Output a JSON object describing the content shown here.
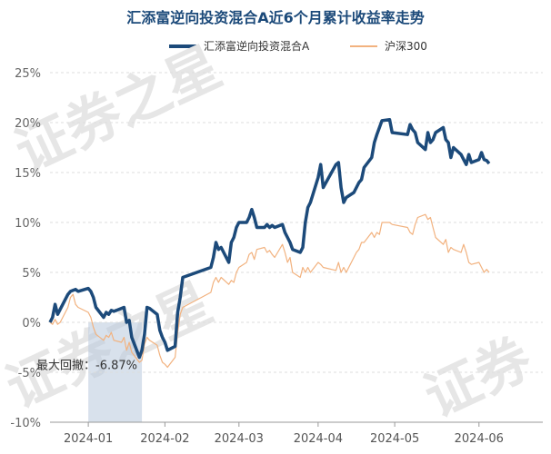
{
  "title": "汇添富逆向投资混合A近6个月累计收益率走势",
  "colors": {
    "fund": "#1c4a7a",
    "index": "#f2b27f",
    "drawdown": "#b8c9dc",
    "title": "#1c4a7a"
  },
  "chart_data": {
    "type": "line",
    "title": "汇添富逆向投资混合A近6个月累计收益率走势",
    "legend_position": "top-center",
    "grid": "horizontal",
    "ylim": [
      -10,
      25
    ],
    "y_ticks": [
      -10,
      -5,
      0,
      5,
      10,
      15,
      20,
      25
    ],
    "y_tick_labels": [
      "-10%",
      "-5%",
      "0%",
      "5%",
      "10%",
      "15%",
      "20%",
      "25%"
    ],
    "x_tick_labels": [
      "2024-01",
      "2024-02",
      "2024-03",
      "2024-04",
      "2024-05",
      "2024-06"
    ],
    "x_tick_dates": [
      "2024-01-02",
      "2024-02-01",
      "2024-03-01",
      "2024-04-01",
      "2024-05-01",
      "2024-06-03"
    ],
    "x_range": [
      "2023-12-18",
      "2024-06-28"
    ],
    "annotation": {
      "text": "最大回撤：-6.87%",
      "start": "2024-01-02",
      "end": "2024-01-23"
    },
    "series": [
      {
        "name": "汇添富逆向投资混合A",
        "points": [
          [
            "2023-12-18",
            0.0
          ],
          [
            "2023-12-19",
            0.5
          ],
          [
            "2023-12-20",
            1.8
          ],
          [
            "2023-12-21",
            0.8
          ],
          [
            "2023-12-22",
            1.3
          ],
          [
            "2023-12-25",
            2.8
          ],
          [
            "2023-12-26",
            3.1
          ],
          [
            "2023-12-27",
            3.2
          ],
          [
            "2023-12-28",
            3.3
          ],
          [
            "2023-12-29",
            3.1
          ],
          [
            "2024-01-02",
            3.4
          ],
          [
            "2024-01-03",
            3.1
          ],
          [
            "2024-01-04",
            2.5
          ],
          [
            "2024-01-05",
            1.5
          ],
          [
            "2024-01-08",
            0.5
          ],
          [
            "2024-01-09",
            1.0
          ],
          [
            "2024-01-10",
            0.8
          ],
          [
            "2024-01-11",
            1.2
          ],
          [
            "2024-01-12",
            1.1
          ],
          [
            "2024-01-15",
            1.4
          ],
          [
            "2024-01-16",
            1.5
          ],
          [
            "2024-01-17",
            0.0
          ],
          [
            "2024-01-18",
            0.2
          ],
          [
            "2024-01-19",
            -1.5
          ],
          [
            "2024-01-22",
            -3.5
          ],
          [
            "2024-01-23",
            -2.8
          ],
          [
            "2024-01-24",
            -1.2
          ],
          [
            "2024-01-25",
            1.5
          ],
          [
            "2024-01-26",
            1.4
          ],
          [
            "2024-01-29",
            0.8
          ],
          [
            "2024-01-30",
            -0.8
          ],
          [
            "2024-01-31",
            -1.5
          ],
          [
            "2024-02-01",
            -2.0
          ],
          [
            "2024-02-02",
            -2.8
          ],
          [
            "2024-02-05",
            -2.4
          ],
          [
            "2024-02-06",
            1.0
          ],
          [
            "2024-02-07",
            2.5
          ],
          [
            "2024-02-08",
            4.5
          ],
          [
            "2024-02-19",
            5.5
          ],
          [
            "2024-02-20",
            6.5
          ],
          [
            "2024-02-21",
            8.0
          ],
          [
            "2024-02-22",
            7.3
          ],
          [
            "2024-02-23",
            7.5
          ],
          [
            "2024-02-26",
            6.0
          ],
          [
            "2024-02-27",
            8.0
          ],
          [
            "2024-02-28",
            8.5
          ],
          [
            "2024-02-29",
            9.5
          ],
          [
            "2024-03-01",
            10.0
          ],
          [
            "2024-03-04",
            10.0
          ],
          [
            "2024-03-05",
            10.5
          ],
          [
            "2024-03-06",
            11.3
          ],
          [
            "2024-03-07",
            10.5
          ],
          [
            "2024-03-08",
            9.5
          ],
          [
            "2024-03-11",
            9.5
          ],
          [
            "2024-03-12",
            9.8
          ],
          [
            "2024-03-13",
            9.5
          ],
          [
            "2024-03-14",
            9.7
          ],
          [
            "2024-03-15",
            9.5
          ],
          [
            "2024-03-18",
            9.8
          ],
          [
            "2024-03-19",
            9.0
          ],
          [
            "2024-03-20",
            8.5
          ],
          [
            "2024-03-21",
            8.0
          ],
          [
            "2024-03-22",
            7.3
          ],
          [
            "2024-03-25",
            7.0
          ],
          [
            "2024-03-26",
            7.5
          ],
          [
            "2024-03-27",
            10.0
          ],
          [
            "2024-03-28",
            11.5
          ],
          [
            "2024-03-29",
            12.0
          ],
          [
            "2024-04-01",
            14.5
          ],
          [
            "2024-04-02",
            15.8
          ],
          [
            "2024-04-03",
            13.5
          ],
          [
            "2024-04-08",
            15.8
          ],
          [
            "2024-04-09",
            16.0
          ],
          [
            "2024-04-10",
            13.5
          ],
          [
            "2024-04-11",
            12.0
          ],
          [
            "2024-04-12",
            12.5
          ],
          [
            "2024-04-15",
            13.0
          ],
          [
            "2024-04-16",
            13.5
          ],
          [
            "2024-04-17",
            14.0
          ],
          [
            "2024-04-18",
            14.3
          ],
          [
            "2024-04-19",
            15.5
          ],
          [
            "2024-04-22",
            16.5
          ],
          [
            "2024-04-23",
            18.0
          ],
          [
            "2024-04-24",
            18.8
          ],
          [
            "2024-04-25",
            19.5
          ],
          [
            "2024-04-26",
            20.2
          ],
          [
            "2024-04-29",
            20.3
          ],
          [
            "2024-04-30",
            19.0
          ],
          [
            "2024-05-06",
            18.8
          ],
          [
            "2024-05-07",
            19.8
          ],
          [
            "2024-05-08",
            19.3
          ],
          [
            "2024-05-09",
            19.0
          ],
          [
            "2024-05-10",
            18.0
          ],
          [
            "2024-05-13",
            17.3
          ],
          [
            "2024-05-14",
            19.0
          ],
          [
            "2024-05-15",
            18.0
          ],
          [
            "2024-05-16",
            18.3
          ],
          [
            "2024-05-17",
            19.0
          ],
          [
            "2024-05-20",
            19.5
          ],
          [
            "2024-05-21",
            18.3
          ],
          [
            "2024-05-22",
            18.0
          ],
          [
            "2024-05-23",
            16.5
          ],
          [
            "2024-05-24",
            17.5
          ],
          [
            "2024-05-27",
            16.8
          ],
          [
            "2024-05-28",
            16.3
          ],
          [
            "2024-05-29",
            15.8
          ],
          [
            "2024-05-30",
            16.8
          ],
          [
            "2024-05-31",
            16.0
          ],
          [
            "2024-06-03",
            16.3
          ],
          [
            "2024-06-04",
            17.0
          ],
          [
            "2024-06-05",
            16.3
          ],
          [
            "2024-06-06",
            16.2
          ],
          [
            "2024-06-07",
            15.9
          ]
        ]
      },
      {
        "name": "沪深300",
        "points": [
          [
            "2023-12-18",
            0.0
          ],
          [
            "2023-12-19",
            -0.2
          ],
          [
            "2023-12-20",
            0.3
          ],
          [
            "2023-12-21",
            -0.2
          ],
          [
            "2023-12-22",
            0.0
          ],
          [
            "2023-12-25",
            1.5
          ],
          [
            "2023-12-26",
            2.5
          ],
          [
            "2023-12-27",
            2.8
          ],
          [
            "2023-12-28",
            1.8
          ],
          [
            "2023-12-29",
            1.5
          ],
          [
            "2024-01-02",
            1.0
          ],
          [
            "2024-01-03",
            0.5
          ],
          [
            "2024-01-04",
            -0.5
          ],
          [
            "2024-01-05",
            -1.2
          ],
          [
            "2024-01-08",
            -1.8
          ],
          [
            "2024-01-09",
            -1.3
          ],
          [
            "2024-01-10",
            -1.5
          ],
          [
            "2024-01-11",
            -1.0
          ],
          [
            "2024-01-12",
            -1.8
          ],
          [
            "2024-01-15",
            -2.0
          ],
          [
            "2024-01-16",
            -1.5
          ],
          [
            "2024-01-17",
            -2.8
          ],
          [
            "2024-01-18",
            -2.0
          ],
          [
            "2024-01-19",
            -3.0
          ],
          [
            "2024-01-22",
            -4.0
          ],
          [
            "2024-01-23",
            -3.8
          ],
          [
            "2024-01-24",
            -2.2
          ],
          [
            "2024-01-25",
            -1.5
          ],
          [
            "2024-01-26",
            -1.8
          ],
          [
            "2024-01-29",
            -2.3
          ],
          [
            "2024-01-30",
            -3.3
          ],
          [
            "2024-01-31",
            -4.0
          ],
          [
            "2024-02-01",
            -4.2
          ],
          [
            "2024-02-02",
            -4.5
          ],
          [
            "2024-02-05",
            -3.5
          ],
          [
            "2024-02-06",
            -1.0
          ],
          [
            "2024-02-07",
            0.8
          ],
          [
            "2024-02-08",
            1.5
          ],
          [
            "2024-02-19",
            3.0
          ],
          [
            "2024-02-20",
            4.0
          ],
          [
            "2024-02-21",
            4.5
          ],
          [
            "2024-02-22",
            4.0
          ],
          [
            "2024-02-23",
            4.5
          ],
          [
            "2024-02-26",
            3.8
          ],
          [
            "2024-02-27",
            4.2
          ],
          [
            "2024-02-28",
            4.0
          ],
          [
            "2024-02-29",
            5.0
          ],
          [
            "2024-03-01",
            5.5
          ],
          [
            "2024-03-04",
            6.0
          ],
          [
            "2024-03-05",
            6.8
          ],
          [
            "2024-03-06",
            7.0
          ],
          [
            "2024-03-07",
            6.3
          ],
          [
            "2024-03-08",
            7.3
          ],
          [
            "2024-03-11",
            7.5
          ],
          [
            "2024-03-12",
            7.0
          ],
          [
            "2024-03-13",
            7.2
          ],
          [
            "2024-03-14",
            6.8
          ],
          [
            "2024-03-15",
            6.5
          ],
          [
            "2024-03-18",
            7.8
          ],
          [
            "2024-03-19",
            7.0
          ],
          [
            "2024-03-20",
            6.0
          ],
          [
            "2024-03-21",
            6.5
          ],
          [
            "2024-03-22",
            5.0
          ],
          [
            "2024-03-25",
            4.5
          ],
          [
            "2024-03-26",
            5.5
          ],
          [
            "2024-03-27",
            5.0
          ],
          [
            "2024-03-28",
            5.5
          ],
          [
            "2024-03-29",
            5.0
          ],
          [
            "2024-04-01",
            6.0
          ],
          [
            "2024-04-02",
            5.8
          ],
          [
            "2024-04-03",
            5.5
          ],
          [
            "2024-04-08",
            5.2
          ],
          [
            "2024-04-09",
            6.0
          ],
          [
            "2024-04-10",
            5.0
          ],
          [
            "2024-04-11",
            5.5
          ],
          [
            "2024-04-12",
            5.0
          ],
          [
            "2024-04-15",
            6.5
          ],
          [
            "2024-04-16",
            7.0
          ],
          [
            "2024-04-17",
            7.3
          ],
          [
            "2024-04-18",
            8.0
          ],
          [
            "2024-04-19",
            8.0
          ],
          [
            "2024-04-22",
            9.0
          ],
          [
            "2024-04-23",
            8.5
          ],
          [
            "2024-04-24",
            9.0
          ],
          [
            "2024-04-25",
            8.8
          ],
          [
            "2024-04-26",
            10.0
          ],
          [
            "2024-04-29",
            10.0
          ],
          [
            "2024-04-30",
            9.8
          ],
          [
            "2024-05-06",
            9.5
          ],
          [
            "2024-05-07",
            9.0
          ],
          [
            "2024-05-08",
            8.8
          ],
          [
            "2024-05-09",
            9.8
          ],
          [
            "2024-05-10",
            10.5
          ],
          [
            "2024-05-13",
            10.8
          ],
          [
            "2024-05-14",
            10.3
          ],
          [
            "2024-05-15",
            10.5
          ],
          [
            "2024-05-16",
            9.5
          ],
          [
            "2024-05-17",
            8.5
          ],
          [
            "2024-05-20",
            7.8
          ],
          [
            "2024-05-21",
            8.3
          ],
          [
            "2024-05-22",
            7.0
          ],
          [
            "2024-05-23",
            7.5
          ],
          [
            "2024-05-24",
            7.3
          ],
          [
            "2024-05-27",
            7.0
          ],
          [
            "2024-05-28",
            7.8
          ],
          [
            "2024-05-29",
            7.0
          ],
          [
            "2024-05-30",
            6.0
          ],
          [
            "2024-05-31",
            5.8
          ],
          [
            "2024-06-03",
            6.0
          ],
          [
            "2024-06-04",
            5.5
          ],
          [
            "2024-06-05",
            5.0
          ],
          [
            "2024-06-06",
            5.3
          ],
          [
            "2024-06-07",
            5.0
          ]
        ]
      }
    ]
  }
}
